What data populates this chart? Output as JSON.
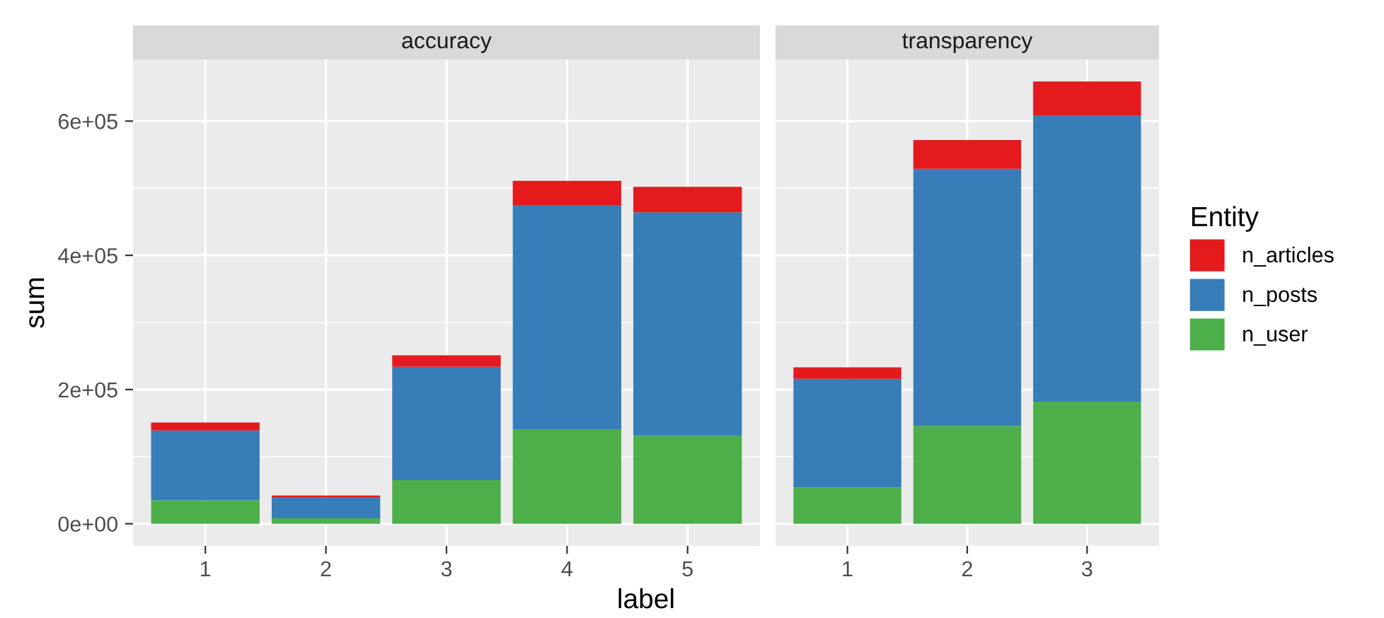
{
  "chart_data": [
    {
      "type": "bar",
      "title": "accuracy",
      "xlabel": "label",
      "ylabel": "sum",
      "categories": [
        "1",
        "2",
        "3",
        "4",
        "5"
      ],
      "stacked": true,
      "series": [
        {
          "color": "#4daf4a",
          "values": [
            35000,
            8000,
            65000,
            141000,
            131000
          ]
        },
        {
          "color": "#377eb8",
          "values": [
            104000,
            31000,
            169000,
            334000,
            333000
          ]
        },
        {
          "color": "#e41a1c",
          "values": [
            12000,
            3000,
            17000,
            36000,
            38000
          ]
        }
      ],
      "ylim": [
        -33000,
        692000
      ],
      "yticks": [
        {
          "value": 0,
          "label": "0e+00"
        },
        {
          "value": 200000,
          "label": "2e+05"
        },
        {
          "value": 400000,
          "label": "4e+05"
        },
        {
          "value": 600000,
          "label": "6e+05"
        }
      ],
      "grid": true
    },
    {
      "type": "bar",
      "title": "transparency",
      "legend_title": "Entity",
      "categories": [
        "1",
        "2",
        "3"
      ],
      "stacked": true,
      "series": [
        {
          "name": "n_user",
          "color": "#4daf4a",
          "values": [
            54000,
            146000,
            182000
          ]
        },
        {
          "name": "n_posts",
          "color": "#377eb8",
          "values": [
            162000,
            383000,
            426000
          ]
        },
        {
          "name": "n_articles",
          "color": "#e41a1c",
          "values": [
            17000,
            43000,
            51000
          ]
        }
      ],
      "ylim": [
        -33000,
        692000
      ],
      "yticks": [
        {
          "value": 0,
          "label": null
        },
        {
          "value": 200000,
          "label": null
        },
        {
          "value": 400000,
          "label": null
        },
        {
          "value": 600000,
          "label": null
        }
      ],
      "grid": true,
      "tick_labels": "x",
      "legend": "right"
    }
  ]
}
